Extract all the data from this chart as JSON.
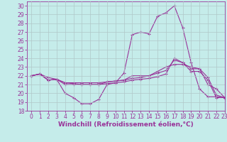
{
  "xlabel": "Windchill (Refroidissement éolien,°C)",
  "xlim": [
    -0.5,
    23
  ],
  "ylim": [
    18,
    30.5
  ],
  "xticks": [
    0,
    1,
    2,
    3,
    4,
    5,
    6,
    7,
    8,
    9,
    10,
    11,
    12,
    13,
    14,
    15,
    16,
    17,
    18,
    19,
    20,
    21,
    22,
    23
  ],
  "yticks": [
    18,
    19,
    20,
    21,
    22,
    23,
    24,
    25,
    26,
    27,
    28,
    29,
    30
  ],
  "background_color": "#c5ecea",
  "grid_color": "#b0c8c8",
  "line_color": "#993399",
  "line1_y": [
    22.0,
    22.2,
    21.5,
    21.6,
    20.0,
    19.5,
    18.8,
    18.8,
    19.3,
    21.0,
    21.2,
    22.3,
    26.7,
    27.0,
    26.8,
    28.8,
    29.2,
    30.0,
    27.5,
    23.5,
    20.5,
    19.6,
    19.6,
    19.5
  ],
  "line2_y": [
    22.0,
    22.2,
    21.5,
    21.6,
    21.2,
    21.2,
    21.2,
    21.2,
    21.2,
    21.3,
    21.4,
    21.5,
    21.7,
    21.8,
    22.0,
    22.3,
    22.6,
    23.8,
    23.5,
    22.8,
    22.8,
    21.8,
    19.8,
    19.5
  ],
  "line3_y": [
    22.0,
    22.2,
    21.8,
    21.6,
    21.2,
    21.1,
    21.0,
    21.0,
    21.0,
    21.1,
    21.2,
    21.3,
    21.5,
    21.6,
    21.7,
    21.9,
    22.2,
    24.0,
    23.5,
    22.5,
    22.5,
    21.5,
    19.5,
    19.5
  ],
  "line4_y": [
    22.0,
    22.2,
    21.5,
    21.6,
    21.0,
    21.0,
    21.0,
    21.0,
    21.0,
    21.3,
    21.4,
    21.5,
    22.0,
    22.0,
    22.0,
    22.5,
    23.0,
    23.3,
    23.3,
    23.0,
    22.8,
    21.0,
    20.5,
    19.5
  ],
  "font_color": "#993399",
  "tick_fontsize": 5.5,
  "label_fontsize": 6.5
}
